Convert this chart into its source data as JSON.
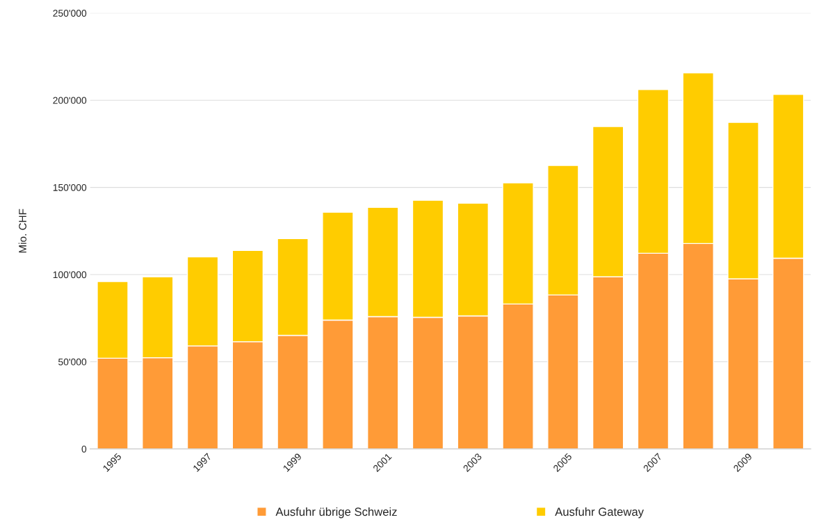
{
  "chart_data": {
    "type": "bar",
    "ylabel": "Mio. CHF",
    "stacked": true,
    "categories": [
      "1995",
      null,
      "1997",
      null,
      "1999",
      null,
      "2001",
      null,
      "2003",
      null,
      "2005",
      null,
      "2007",
      null,
      "2009",
      null
    ],
    "series": [
      {
        "name": "Ausfuhr übrige Schweiz",
        "color": "#ff9b37",
        "values": [
          52000,
          52300,
          59100,
          61500,
          65100,
          73900,
          75900,
          75500,
          76300,
          83100,
          88300,
          98700,
          112200,
          117800,
          97500,
          109400
        ]
      },
      {
        "name": "Ausfuhr Gateway",
        "color": "#ffcc00",
        "values": [
          44000,
          46400,
          51100,
          52300,
          55500,
          61900,
          62700,
          67100,
          64700,
          69500,
          74300,
          86200,
          93900,
          97900,
          89800,
          93900
        ]
      }
    ],
    "ylim": [
      0,
      250000
    ],
    "yticks": [
      0,
      {
        "value": 50000,
        "label": "50'000"
      },
      {
        "value": 100000,
        "label": "100'000"
      },
      {
        "value": 150000,
        "label": "150'000"
      },
      {
        "value": 200000,
        "label": "200'000"
      },
      {
        "value": 250000,
        "label": "250'000"
      }
    ],
    "grid": "y",
    "legend": "bottom"
  }
}
